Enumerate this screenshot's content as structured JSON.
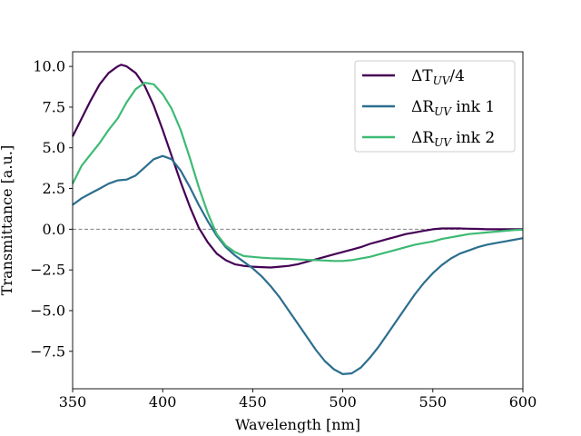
{
  "chart_data": {
    "type": "line",
    "title": "",
    "xlabel": "Wavelength [nm]",
    "ylabel": "Transmittance [a.u.]",
    "xlim": [
      350,
      600
    ],
    "ylim": [
      -9.8,
      10.9
    ],
    "xticks": [
      350,
      400,
      450,
      500,
      550,
      600
    ],
    "xtick_labels": [
      "350",
      "400",
      "450",
      "500",
      "550",
      "600"
    ],
    "yticks": [
      -7.5,
      -5.0,
      -2.5,
      0.0,
      2.5,
      5.0,
      7.5,
      10.0
    ],
    "ytick_labels": [
      "−7.5",
      "−5.0",
      "−2.5",
      "0.0",
      "2.5",
      "5.0",
      "7.5",
      "10.0"
    ],
    "reference_line": {
      "y": 0.0,
      "style": "dashed",
      "color": "#808080"
    },
    "legend_position": "upper right",
    "grid": false,
    "series": [
      {
        "name": "ΔT_UV/4",
        "legend": {
          "main": "ΔT",
          "sub": "UV",
          "suffix": "/4"
        },
        "color": "#440154",
        "x": [
          350,
          355,
          360,
          365,
          370,
          375,
          377,
          380,
          385,
          390,
          395,
          400,
          405,
          410,
          415,
          420,
          425,
          430,
          435,
          440,
          445,
          450,
          455,
          460,
          465,
          470,
          475,
          480,
          485,
          490,
          495,
          500,
          505,
          510,
          515,
          520,
          525,
          530,
          535,
          540,
          545,
          550,
          555,
          560,
          565,
          570,
          575,
          580,
          585,
          590,
          595,
          600
        ],
        "y": [
          5.7,
          6.8,
          7.9,
          8.9,
          9.6,
          10.0,
          10.1,
          10.0,
          9.6,
          8.8,
          7.6,
          6.1,
          4.5,
          2.9,
          1.4,
          0.1,
          -0.8,
          -1.5,
          -1.9,
          -2.15,
          -2.25,
          -2.3,
          -2.33,
          -2.35,
          -2.3,
          -2.25,
          -2.15,
          -2.0,
          -1.85,
          -1.7,
          -1.55,
          -1.4,
          -1.25,
          -1.1,
          -0.9,
          -0.75,
          -0.6,
          -0.45,
          -0.3,
          -0.2,
          -0.1,
          0.0,
          0.05,
          0.05,
          0.05,
          0.03,
          0.02,
          0.0,
          0.0,
          0.0,
          0.0,
          0.0
        ]
      },
      {
        "name": "ΔR_UV ink 1",
        "legend": {
          "main": "ΔR",
          "sub": "UV",
          "suffix": " ink 1"
        },
        "color": "#2c6e8e",
        "x": [
          350,
          355,
          360,
          365,
          370,
          375,
          380,
          385,
          390,
          395,
          400,
          405,
          410,
          415,
          420,
          425,
          430,
          435,
          440,
          445,
          450,
          455,
          460,
          465,
          470,
          475,
          480,
          485,
          490,
          495,
          500,
          505,
          510,
          515,
          520,
          525,
          530,
          535,
          540,
          545,
          550,
          555,
          560,
          565,
          570,
          575,
          580,
          585,
          590,
          595,
          600
        ],
        "y": [
          1.5,
          1.9,
          2.2,
          2.5,
          2.8,
          3.0,
          3.05,
          3.3,
          3.8,
          4.3,
          4.5,
          4.3,
          3.6,
          2.6,
          1.5,
          0.5,
          -0.4,
          -1.1,
          -1.6,
          -2.0,
          -2.4,
          -2.9,
          -3.5,
          -4.2,
          -5.0,
          -5.8,
          -6.6,
          -7.4,
          -8.1,
          -8.6,
          -8.9,
          -8.85,
          -8.5,
          -7.9,
          -7.2,
          -6.4,
          -5.6,
          -4.8,
          -4.0,
          -3.3,
          -2.7,
          -2.2,
          -1.8,
          -1.5,
          -1.3,
          -1.1,
          -0.95,
          -0.85,
          -0.75,
          -0.65,
          -0.55
        ]
      },
      {
        "name": "ΔR_UV ink 2",
        "legend": {
          "main": "ΔR",
          "sub": "UV",
          "suffix": " ink 2"
        },
        "color": "#3dba74",
        "x": [
          350,
          355,
          360,
          365,
          370,
          375,
          380,
          385,
          390,
          395,
          400,
          405,
          410,
          415,
          420,
          425,
          430,
          435,
          440,
          445,
          450,
          455,
          460,
          465,
          470,
          475,
          480,
          485,
          490,
          495,
          500,
          505,
          510,
          515,
          520,
          525,
          530,
          535,
          540,
          545,
          550,
          555,
          560,
          565,
          570,
          575,
          580,
          585,
          590,
          595,
          600
        ],
        "y": [
          2.8,
          3.9,
          4.6,
          5.3,
          6.1,
          6.8,
          7.8,
          8.6,
          9.0,
          8.9,
          8.3,
          7.4,
          6.1,
          4.4,
          2.6,
          1.0,
          -0.3,
          -1.0,
          -1.4,
          -1.65,
          -1.7,
          -1.75,
          -1.78,
          -1.8,
          -1.82,
          -1.85,
          -1.88,
          -1.9,
          -1.92,
          -1.95,
          -1.95,
          -1.9,
          -1.8,
          -1.7,
          -1.55,
          -1.4,
          -1.25,
          -1.1,
          -0.95,
          -0.85,
          -0.75,
          -0.6,
          -0.5,
          -0.4,
          -0.3,
          -0.25,
          -0.2,
          -0.15,
          -0.1,
          -0.05,
          -0.03
        ]
      }
    ]
  }
}
